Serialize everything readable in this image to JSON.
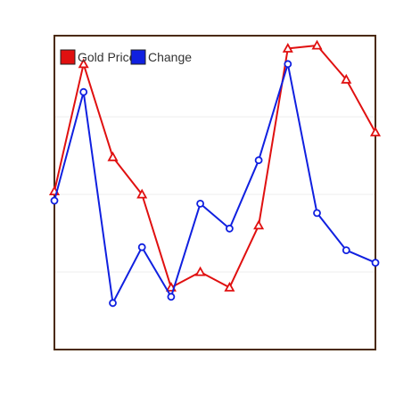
{
  "chart_data": {
    "type": "line",
    "title": "",
    "xlabel": "",
    "ylabel": "",
    "x": [
      1,
      2,
      3,
      4,
      5,
      6,
      7,
      8,
      9,
      10,
      11,
      12
    ],
    "ylim": [
      0,
      100
    ],
    "grid": true,
    "legend_position": "top-left",
    "series": [
      {
        "name": "Gold Price",
        "color": "#e01010",
        "marker": "triangle",
        "values": [
          51,
          92,
          62,
          50,
          20,
          25,
          20,
          40,
          97,
          98,
          87,
          70
        ]
      },
      {
        "name": "Change",
        "color": "#1020e0",
        "marker": "circle",
        "values": [
          48,
          83,
          15,
          33,
          17,
          47,
          39,
          61,
          92,
          44,
          32,
          28
        ]
      }
    ]
  }
}
